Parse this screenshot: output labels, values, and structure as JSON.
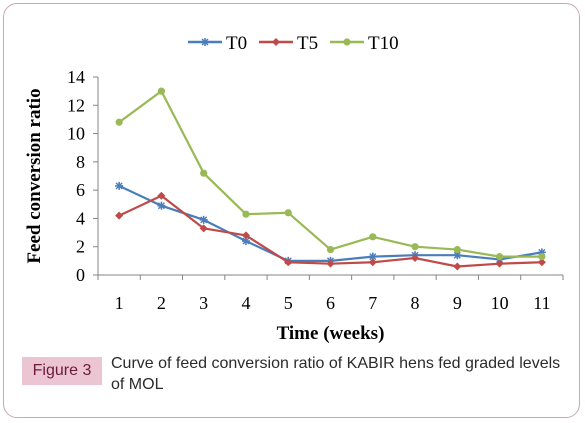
{
  "chart_data": {
    "type": "line",
    "x": [
      1,
      2,
      3,
      4,
      5,
      6,
      7,
      8,
      9,
      10,
      11
    ],
    "series": [
      {
        "name": "T0",
        "color": "#4a7ebb",
        "marker": "star",
        "values": [
          6.3,
          4.9,
          3.9,
          2.4,
          1.0,
          1.0,
          1.3,
          1.4,
          1.4,
          1.1,
          1.6
        ]
      },
      {
        "name": "T5",
        "color": "#be4b48",
        "marker": "diamond",
        "values": [
          4.2,
          5.6,
          3.3,
          2.8,
          0.9,
          0.8,
          0.9,
          1.2,
          0.6,
          0.8,
          0.9
        ]
      },
      {
        "name": "T10",
        "color": "#98b954",
        "marker": "circle",
        "values": [
          10.8,
          13.0,
          7.2,
          4.3,
          4.4,
          1.8,
          2.7,
          2.0,
          1.8,
          1.3,
          1.3
        ]
      }
    ],
    "xlabel": "Time (weeks)",
    "ylabel": "Feed conversion ratio",
    "ylim": [
      0,
      14
    ],
    "yticks": [
      0,
      2,
      4,
      6,
      8,
      10,
      12,
      14
    ],
    "xticks": [
      1,
      2,
      3,
      4,
      5,
      6,
      7,
      8,
      9,
      10,
      11
    ],
    "grid": false,
    "legend_position": "top"
  },
  "caption": {
    "label": "Figure 3",
    "text": "Curve of feed conversion ratio of KABIR hens fed graded levels of MOL"
  }
}
